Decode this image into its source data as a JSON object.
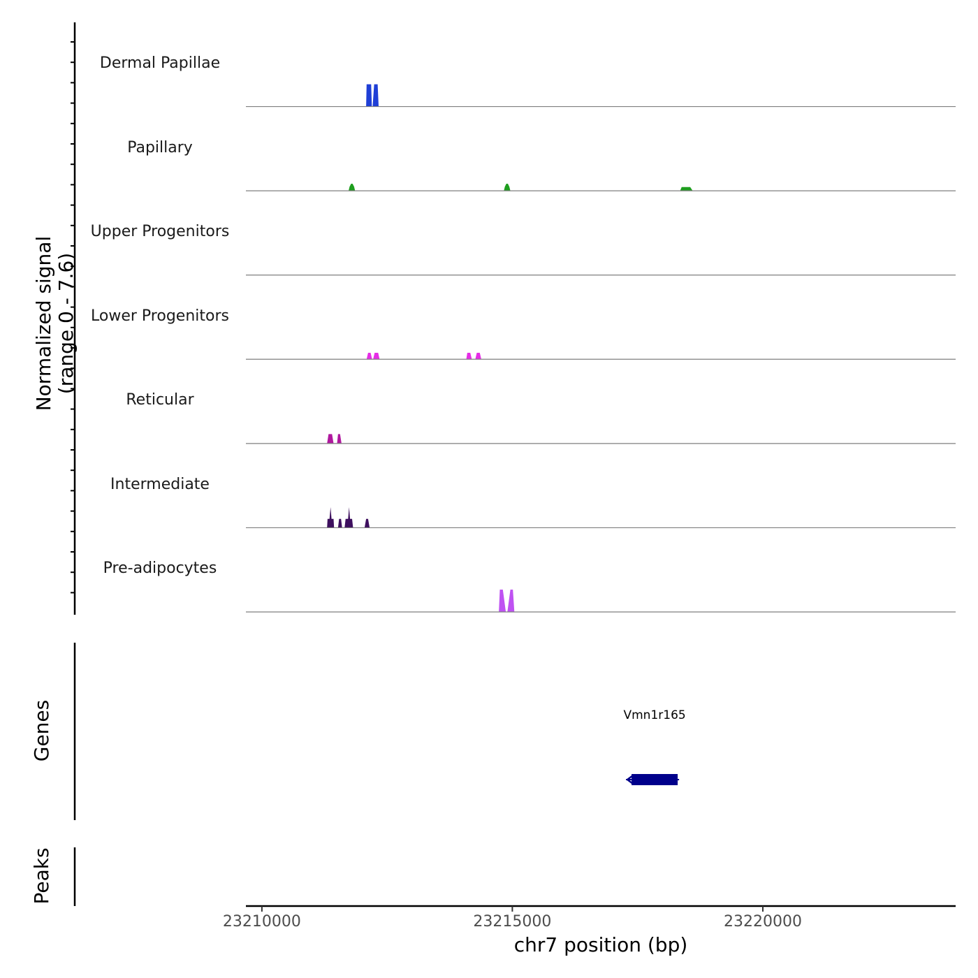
{
  "chart_data": {
    "type": "area",
    "title": "",
    "chromosome": "chr7",
    "xlabel": "chr7 position (bp)",
    "xlim": [
      23209680,
      23223850
    ],
    "xticks": [
      23210000,
      23215000,
      23220000
    ],
    "xtick_labels": [
      "23210000",
      "23215000",
      "23220000"
    ],
    "coverage_ylabel_line1": "Normalized signal",
    "coverage_ylabel_line2": "(range 0 - 7.6)",
    "ylim": [
      0,
      7.6
    ],
    "genes_label": "Genes",
    "peaks_label": "Peaks",
    "tracks": [
      {
        "name": "Dermal Papillae",
        "color": "#1f3fd6",
        "points": [
          [
            23212080,
            0
          ],
          [
            23212090,
            7.6
          ],
          [
            23212180,
            7.6
          ],
          [
            23212195,
            0
          ],
          [
            23212210,
            0
          ],
          [
            23212240,
            7.6
          ],
          [
            23212310,
            7.6
          ],
          [
            23212330,
            0
          ]
        ]
      },
      {
        "name": "Papillary",
        "color": "#1e9e1e",
        "points": [
          [
            23211730,
            0
          ],
          [
            23211750,
            1.4
          ],
          [
            23211780,
            2.4
          ],
          [
            23211810,
            2.4
          ],
          [
            23211840,
            1.4
          ],
          [
            23211860,
            0
          ],
          [
            23214830,
            0
          ],
          [
            23214850,
            1.4
          ],
          [
            23214880,
            2.4
          ],
          [
            23214910,
            2.4
          ],
          [
            23214940,
            1.4
          ],
          [
            23214960,
            0
          ],
          [
            23218350,
            0
          ],
          [
            23218380,
            1.3
          ],
          [
            23218550,
            1.3
          ],
          [
            23218600,
            0
          ]
        ]
      },
      {
        "name": "Upper Progenitors",
        "color": "#00868b",
        "points": []
      },
      {
        "name": "Lower Progenitors",
        "color": "#e62ee6",
        "points": [
          [
            23212090,
            0
          ],
          [
            23212120,
            2.2
          ],
          [
            23212170,
            2.2
          ],
          [
            23212200,
            0
          ],
          [
            23212220,
            0
          ],
          [
            23212250,
            2.2
          ],
          [
            23212320,
            2.2
          ],
          [
            23212350,
            0
          ],
          [
            23214080,
            0
          ],
          [
            23214100,
            2.2
          ],
          [
            23214160,
            2.2
          ],
          [
            23214190,
            0
          ],
          [
            23214260,
            0
          ],
          [
            23214290,
            2.2
          ],
          [
            23214350,
            2.2
          ],
          [
            23214380,
            0
          ]
        ]
      },
      {
        "name": "Reticular",
        "color": "#b0189e",
        "points": [
          [
            23211300,
            0
          ],
          [
            23211330,
            3.2
          ],
          [
            23211400,
            3.2
          ],
          [
            23211430,
            0
          ],
          [
            23211500,
            0
          ],
          [
            23211520,
            3.2
          ],
          [
            23211560,
            3.2
          ],
          [
            23211590,
            0
          ]
        ]
      },
      {
        "name": "Intermediate",
        "color": "#3d0f5e",
        "points": [
          [
            23211300,
            0
          ],
          [
            23211310,
            3.0
          ],
          [
            23211350,
            3.0
          ],
          [
            23211370,
            7.0
          ],
          [
            23211390,
            3.0
          ],
          [
            23211430,
            3.0
          ],
          [
            23211440,
            0
          ],
          [
            23211520,
            0
          ],
          [
            23211540,
            3.0
          ],
          [
            23211580,
            3.0
          ],
          [
            23211600,
            0
          ],
          [
            23211650,
            0
          ],
          [
            23211670,
            3.0
          ],
          [
            23211720,
            3.0
          ],
          [
            23211740,
            7.0
          ],
          [
            23211760,
            3.0
          ],
          [
            23211800,
            3.0
          ],
          [
            23211820,
            0
          ],
          [
            23212050,
            0
          ],
          [
            23212080,
            3.0
          ],
          [
            23212120,
            3.0
          ],
          [
            23212150,
            0
          ]
        ]
      },
      {
        "name": "Pre-adipocytes",
        "color": "#bf52f2",
        "points": [
          [
            23214730,
            0
          ],
          [
            23214750,
            7.6
          ],
          [
            23214810,
            7.6
          ],
          [
            23214870,
            0
          ],
          [
            23214900,
            0
          ],
          [
            23214960,
            7.6
          ],
          [
            23215010,
            7.6
          ],
          [
            23215040,
            0
          ]
        ]
      }
    ],
    "genes": [
      {
        "name": "Vmn1r165",
        "start": 23217380,
        "end": 23218300,
        "strand": "-",
        "color": "#00008b"
      }
    ],
    "peaks": []
  }
}
